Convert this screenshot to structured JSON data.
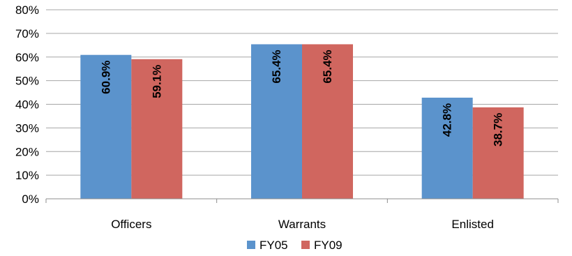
{
  "chart_data": {
    "type": "bar",
    "title": "",
    "xlabel": "",
    "ylabel": "",
    "categories": [
      "Officers",
      "Warrants",
      "Enlisted"
    ],
    "series": [
      {
        "name": "FY05",
        "color": "#5b93cc",
        "values": [
          60.9,
          65.4,
          42.8
        ],
        "labels": [
          "60.9%",
          "65.4%",
          "42.8%"
        ]
      },
      {
        "name": "FY09",
        "color": "#d0665f",
        "values": [
          59.1,
          65.4,
          38.7
        ],
        "labels": [
          "59.1%",
          "65.4%",
          "38.7%"
        ]
      }
    ],
    "ylim": [
      0,
      80
    ],
    "yticks": [
      0,
      10,
      20,
      30,
      40,
      50,
      60,
      70,
      80
    ],
    "ytick_labels": [
      "0%",
      "10%",
      "20%",
      "30%",
      "40%",
      "50%",
      "60%",
      "70%",
      "80%"
    ],
    "grid": true,
    "legend": "bottom-center"
  }
}
